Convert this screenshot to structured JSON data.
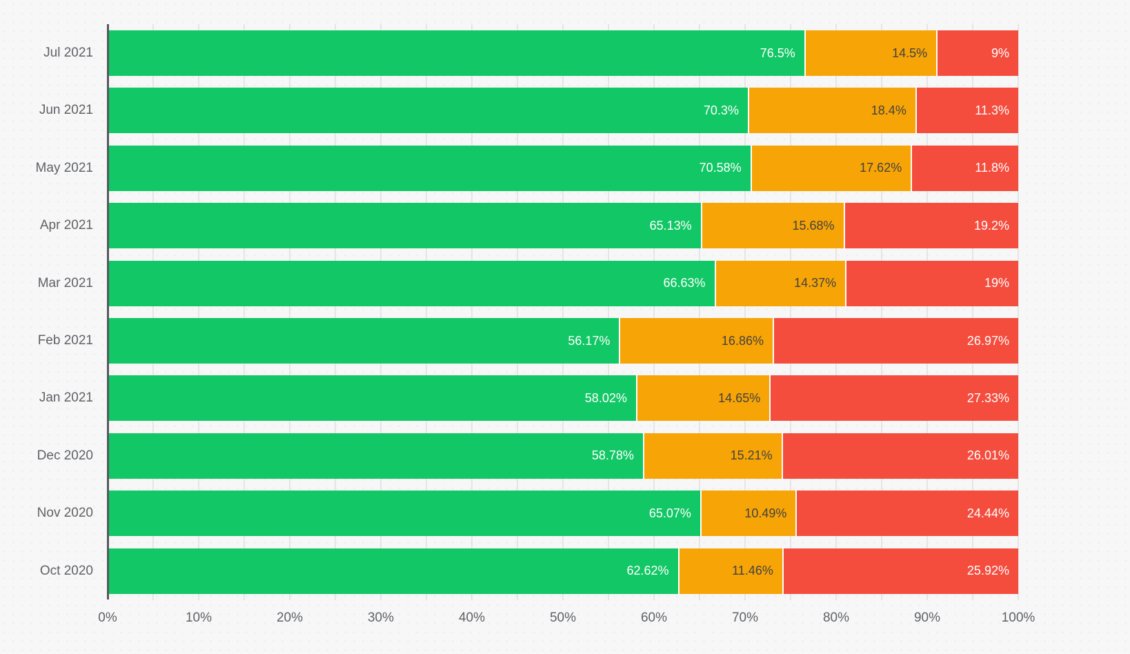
{
  "chart_data": {
    "type": "bar",
    "orientation": "horizontal-stacked",
    "title": "",
    "xlabel": "",
    "ylabel": "",
    "xlim": [
      0,
      100
    ],
    "grid": "vertical, every 5%, light gray",
    "legend": "none",
    "categories": [
      "Jul 2021",
      "Jun 2021",
      "May 2021",
      "Apr 2021",
      "Mar 2021",
      "Feb 2021",
      "Jan 2021",
      "Dec 2020",
      "Nov 2020",
      "Oct 2020"
    ],
    "x_ticks": [
      "0%",
      "10%",
      "20%",
      "30%",
      "40%",
      "50%",
      "60%",
      "70%",
      "80%",
      "90%",
      "100%"
    ],
    "series": [
      {
        "name": "green",
        "color": "#12c765",
        "label_color": "#ffffff",
        "values": [
          76.5,
          70.3,
          70.58,
          65.13,
          66.63,
          56.17,
          58.02,
          58.78,
          65.07,
          62.62
        ],
        "labels": [
          "76.5%",
          "70.3%",
          "70.58%",
          "65.13%",
          "66.63%",
          "56.17%",
          "58.02%",
          "58.78%",
          "65.07%",
          "62.62%"
        ]
      },
      {
        "name": "amber",
        "color": "#f7a406",
        "label_color": "#424242",
        "values": [
          14.5,
          18.4,
          17.62,
          15.68,
          14.37,
          16.86,
          14.65,
          15.21,
          10.49,
          11.46
        ],
        "labels": [
          "14.5%",
          "18.4%",
          "17.62%",
          "15.68%",
          "14.37%",
          "16.86%",
          "14.65%",
          "15.21%",
          "10.49%",
          "11.46%"
        ]
      },
      {
        "name": "red",
        "color": "#f44d3e",
        "label_color": "#ffffff",
        "values": [
          9,
          11.3,
          11.8,
          19.2,
          19,
          26.97,
          27.33,
          26.01,
          24.44,
          25.92
        ],
        "labels": [
          "9%",
          "11.3%",
          "11.8%",
          "19.2%",
          "19%",
          "26.97%",
          "27.33%",
          "26.01%",
          "24.44%",
          "25.92%"
        ]
      }
    ]
  },
  "colors": {
    "background": "#f7f7f8",
    "gridline": "#e5e5e7",
    "axis_line": "#55575b",
    "axis_text": "#5f6164",
    "green_segment": "#12c765",
    "amber_segment": "#f7a406",
    "red_segment": "#f44d3e"
  }
}
